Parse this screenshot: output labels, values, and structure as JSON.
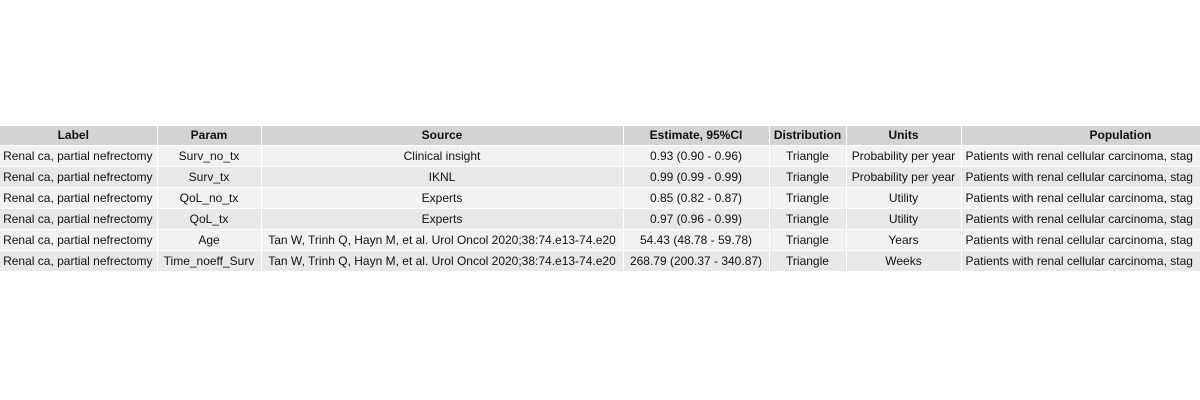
{
  "table": {
    "headers": [
      "Label",
      "Param",
      "Source",
      "Estimate, 95%CI",
      "Distribution",
      "Units",
      "Population"
    ],
    "rows": [
      [
        "Renal ca, partial nefrectomy",
        "Surv_no_tx",
        "Clinical insight",
        "0.93 (0.90 - 0.96)",
        "Triangle",
        "Probability per year",
        "Patients with renal cellular carcinoma, stag"
      ],
      [
        "Renal ca, partial nefrectomy",
        "Surv_tx",
        "IKNL",
        "0.99 (0.99 - 0.99)",
        "Triangle",
        "Probability per year",
        "Patients with renal cellular carcinoma, stag"
      ],
      [
        "Renal ca, partial nefrectomy",
        "QoL_no_tx",
        "Experts",
        "0.85 (0.82 - 0.87)",
        "Triangle",
        "Utility",
        "Patients with renal cellular carcinoma, stag"
      ],
      [
        "Renal ca, partial nefrectomy",
        "QoL_tx",
        "Experts",
        "0.97 (0.96 - 0.99)",
        "Triangle",
        "Utility",
        "Patients with renal cellular carcinoma, stag"
      ],
      [
        "Renal ca, partial nefrectomy",
        "Age",
        "Tan W, Trinh Q, Hayn M, et al. Urol Oncol 2020;38:74.e13-74.e20",
        "54.43 (48.78 - 59.78)",
        "Triangle",
        "Years",
        "Patients with renal cellular carcinoma, stag"
      ],
      [
        "Renal ca, partial nefrectomy",
        "Time_noeff_Surv",
        "Tan W, Trinh Q, Hayn M, et al. Urol Oncol 2020;38:74.e13-74.e20",
        "268.79 (200.37 - 340.87)",
        "Triangle",
        "Weeks",
        "Patients with renal cellular carcinoma, stag"
      ]
    ]
  }
}
